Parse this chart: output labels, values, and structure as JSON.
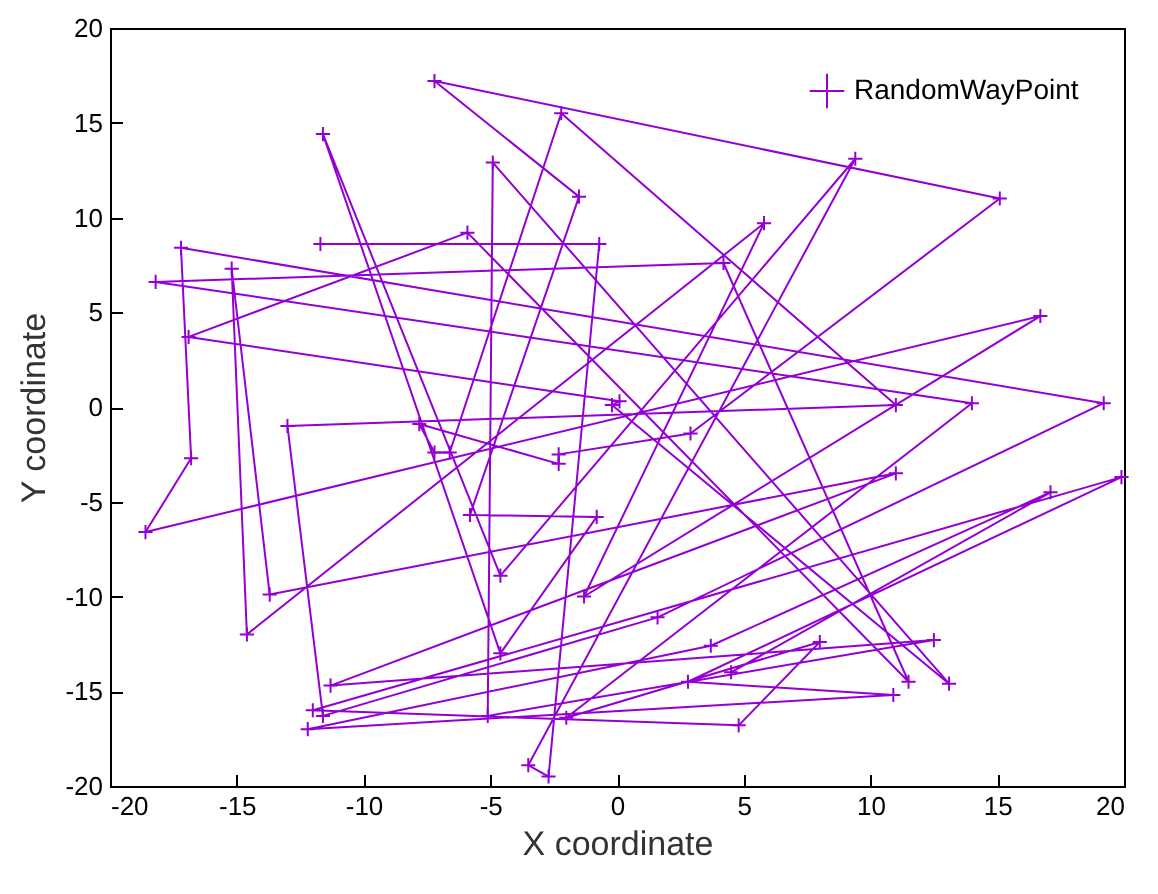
{
  "chart_data": {
    "type": "line",
    "xlabel": "X coordinate",
    "ylabel": "Y coordinate",
    "xlim": [
      -20,
      20
    ],
    "ylim": [
      -20,
      20
    ],
    "xticks": [
      -20,
      -15,
      -10,
      -5,
      0,
      5,
      10,
      15,
      20
    ],
    "yticks": [
      -20,
      -15,
      -10,
      -5,
      0,
      5,
      10,
      15,
      20
    ],
    "legend": "top right",
    "marker": "cross",
    "grid": false,
    "series": [
      {
        "name": "RandomWayPoint",
        "color": "#9400d3",
        "x": [
          -11.7,
          -0.7,
          -2.7,
          -3.5,
          9.4,
          -4.6,
          -11.6,
          -4.6,
          -0.8,
          -5.8,
          -1.5,
          -7.2,
          15.1,
          2.9,
          -2.3,
          -2.3,
          -7.8,
          -7.2,
          -6.6,
          -2.2,
          11.0,
          -13.0,
          -11.6,
          1.6,
          19.2,
          -17.2,
          -16.8,
          -18.6,
          16.7,
          -1.3,
          5.8,
          -14.6,
          -15.2,
          -13.7,
          11.0,
          -11.3,
          12.5,
          -5.1,
          -4.9,
          13.1,
          -0.2,
          0.1,
          -16.9,
          -5.9,
          11.5,
          4.2,
          -18.2,
          14.0,
          -2.0,
          8.0,
          4.8,
          -12.0,
          19.9,
          2.8,
          10.9,
          -12.2,
          3.7,
          17.1,
          4.5
        ],
        "values": [
          8.6,
          8.6,
          -19.5,
          -18.9,
          13.1,
          -8.9,
          14.4,
          -13.0,
          -5.8,
          -5.7,
          11.1,
          17.2,
          11.0,
          -1.4,
          -2.5,
          -3.0,
          -0.9,
          -2.4,
          -2.4,
          15.5,
          0.1,
          -1.0,
          -16.3,
          -11.1,
          0.2,
          8.4,
          -2.7,
          -6.6,
          4.8,
          -10.0,
          9.7,
          -12.0,
          7.3,
          -9.9,
          -3.5,
          -14.7,
          -12.3,
          -16.3,
          12.9,
          -14.6,
          0.1,
          0.3,
          3.7,
          9.2,
          -14.5,
          7.6,
          6.6,
          0.2,
          -16.4,
          -12.4,
          -16.8,
          -16.0,
          -3.7,
          -14.5,
          -15.2,
          -17.0,
          -12.6,
          -4.5,
          -14.0
        ]
      }
    ]
  }
}
